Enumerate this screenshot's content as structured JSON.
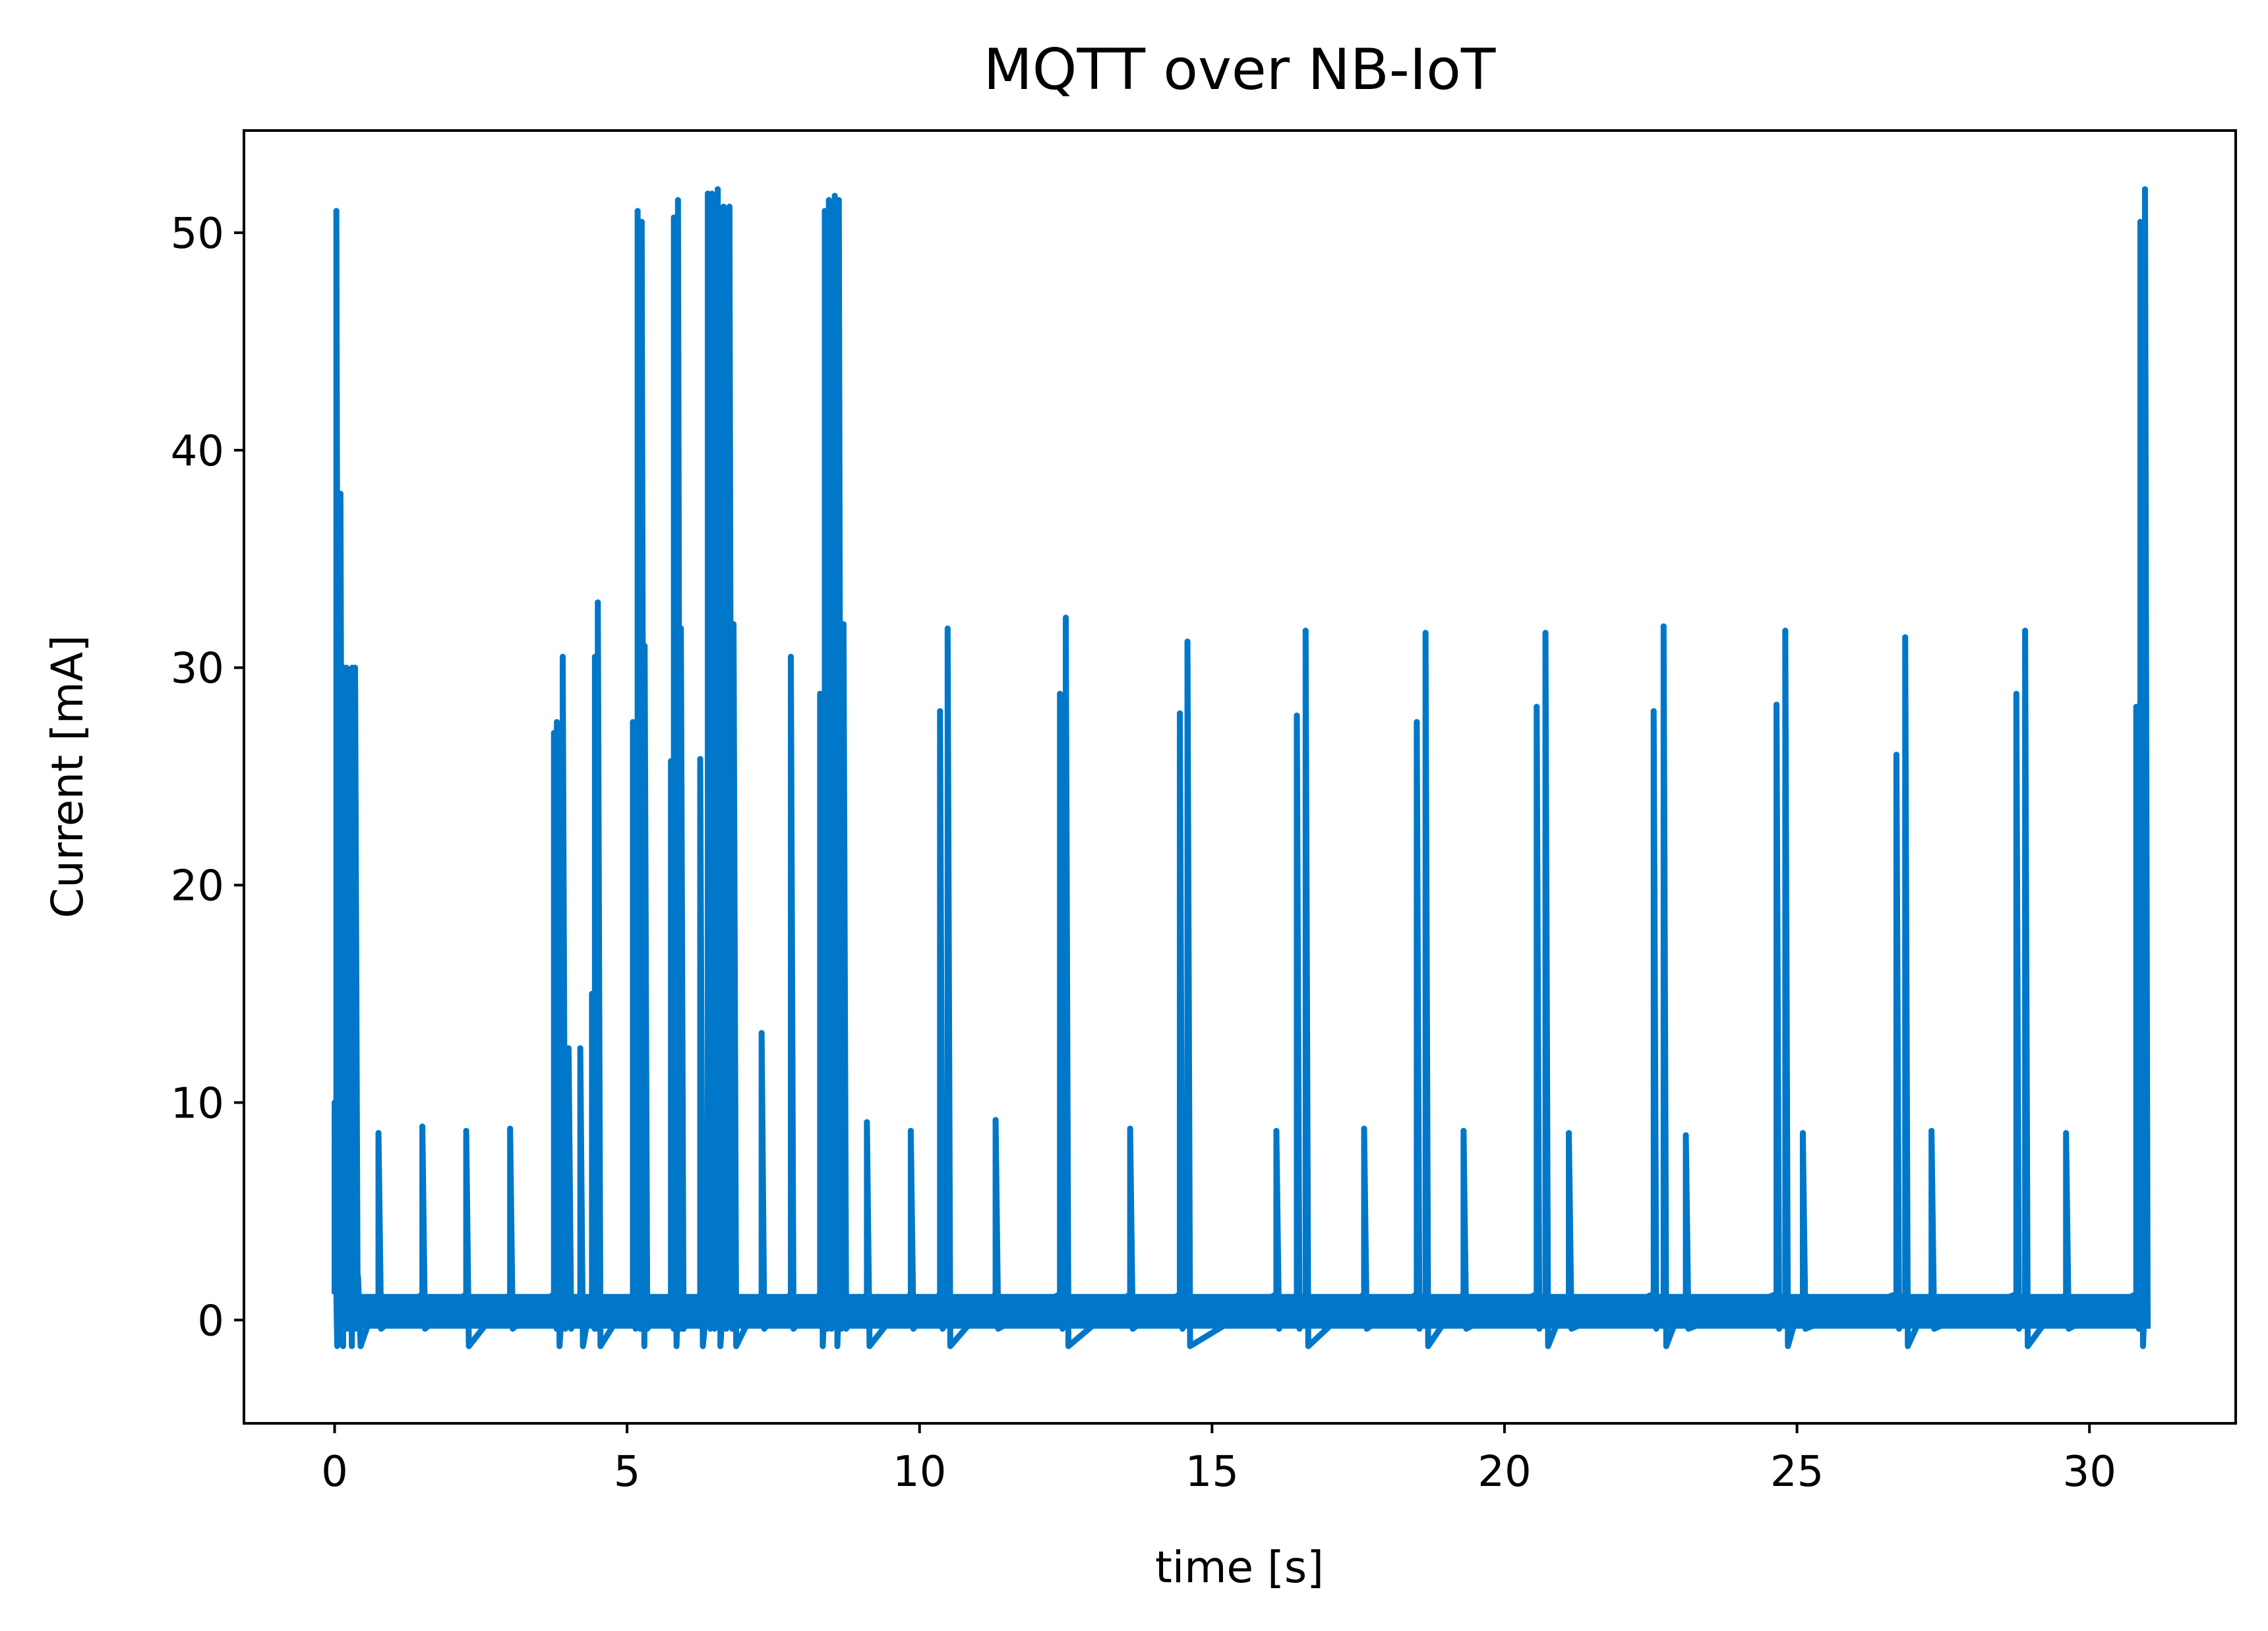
{
  "chart_data": {
    "type": "line",
    "title": "MQTT over NB-IoT",
    "xlabel": "time [s]",
    "ylabel": "Current [mA]",
    "xlim": [
      -1.55,
      32.5
    ],
    "ylim": [
      -4.75,
      54.7
    ],
    "xticks": [
      0,
      5,
      10,
      15,
      20,
      25,
      30
    ],
    "yticks": [
      0,
      10,
      20,
      30,
      40,
      50
    ],
    "grid": false,
    "color": "#0077c8",
    "baseline": {
      "x_range": [
        0.4,
        30.9
      ],
      "low": -0.4,
      "high": 1.2
    },
    "series": [
      {
        "x": [
          0.0,
          0.03,
          0.06,
          0.1,
          0.15,
          0.2,
          0.25,
          0.3,
          0.35,
          0.4,
          0.75,
          1.5,
          2.25,
          3.0,
          3.75,
          3.8,
          3.9,
          4.0,
          4.2,
          4.4,
          4.45,
          4.5,
          5.1,
          5.18,
          5.25,
          5.3,
          5.75,
          5.8,
          5.87,
          5.92,
          6.25,
          6.38,
          6.45,
          6.55,
          6.65,
          6.75,
          6.82,
          7.3,
          7.8,
          8.3,
          8.38,
          8.45,
          8.55,
          8.62,
          8.7,
          9.1,
          9.85,
          10.35,
          10.48,
          11.3,
          12.4,
          12.5,
          13.6,
          14.45,
          14.58,
          16.1,
          16.45,
          16.6,
          17.6,
          18.5,
          18.65,
          19.3,
          20.55,
          20.7,
          21.1,
          22.55,
          22.72,
          23.1,
          24.65,
          24.8,
          25.1,
          26.7,
          26.85,
          27.3,
          28.75,
          28.9,
          29.6,
          30.8,
          30.87,
          30.95
        ],
        "y": [
          10,
          51,
          20,
          38,
          30,
          30,
          8,
          30,
          30,
          2,
          8.6,
          8.9,
          8.7,
          8.8,
          27,
          27.5,
          30.5,
          12.5,
          12.5,
          15,
          30.5,
          33,
          27.5,
          51,
          50.5,
          31,
          25.7,
          50.7,
          51.5,
          31.8,
          25.8,
          51.8,
          51.8,
          52,
          51.2,
          51.2,
          32,
          13.2,
          30.5,
          28.8,
          51,
          51.5,
          51.7,
          51.5,
          32,
          9.1,
          8.7,
          28,
          31.8,
          9.2,
          28.8,
          32.3,
          8.8,
          27.9,
          31.2,
          8.7,
          27.8,
          31.7,
          8.8,
          27.5,
          31.6,
          8.7,
          28.2,
          31.6,
          8.6,
          28,
          31.9,
          8.5,
          28.3,
          31.7,
          8.6,
          26,
          31.4,
          8.7,
          28.8,
          31.7,
          8.6,
          28.2,
          50.5,
          52
        ]
      }
    ]
  }
}
